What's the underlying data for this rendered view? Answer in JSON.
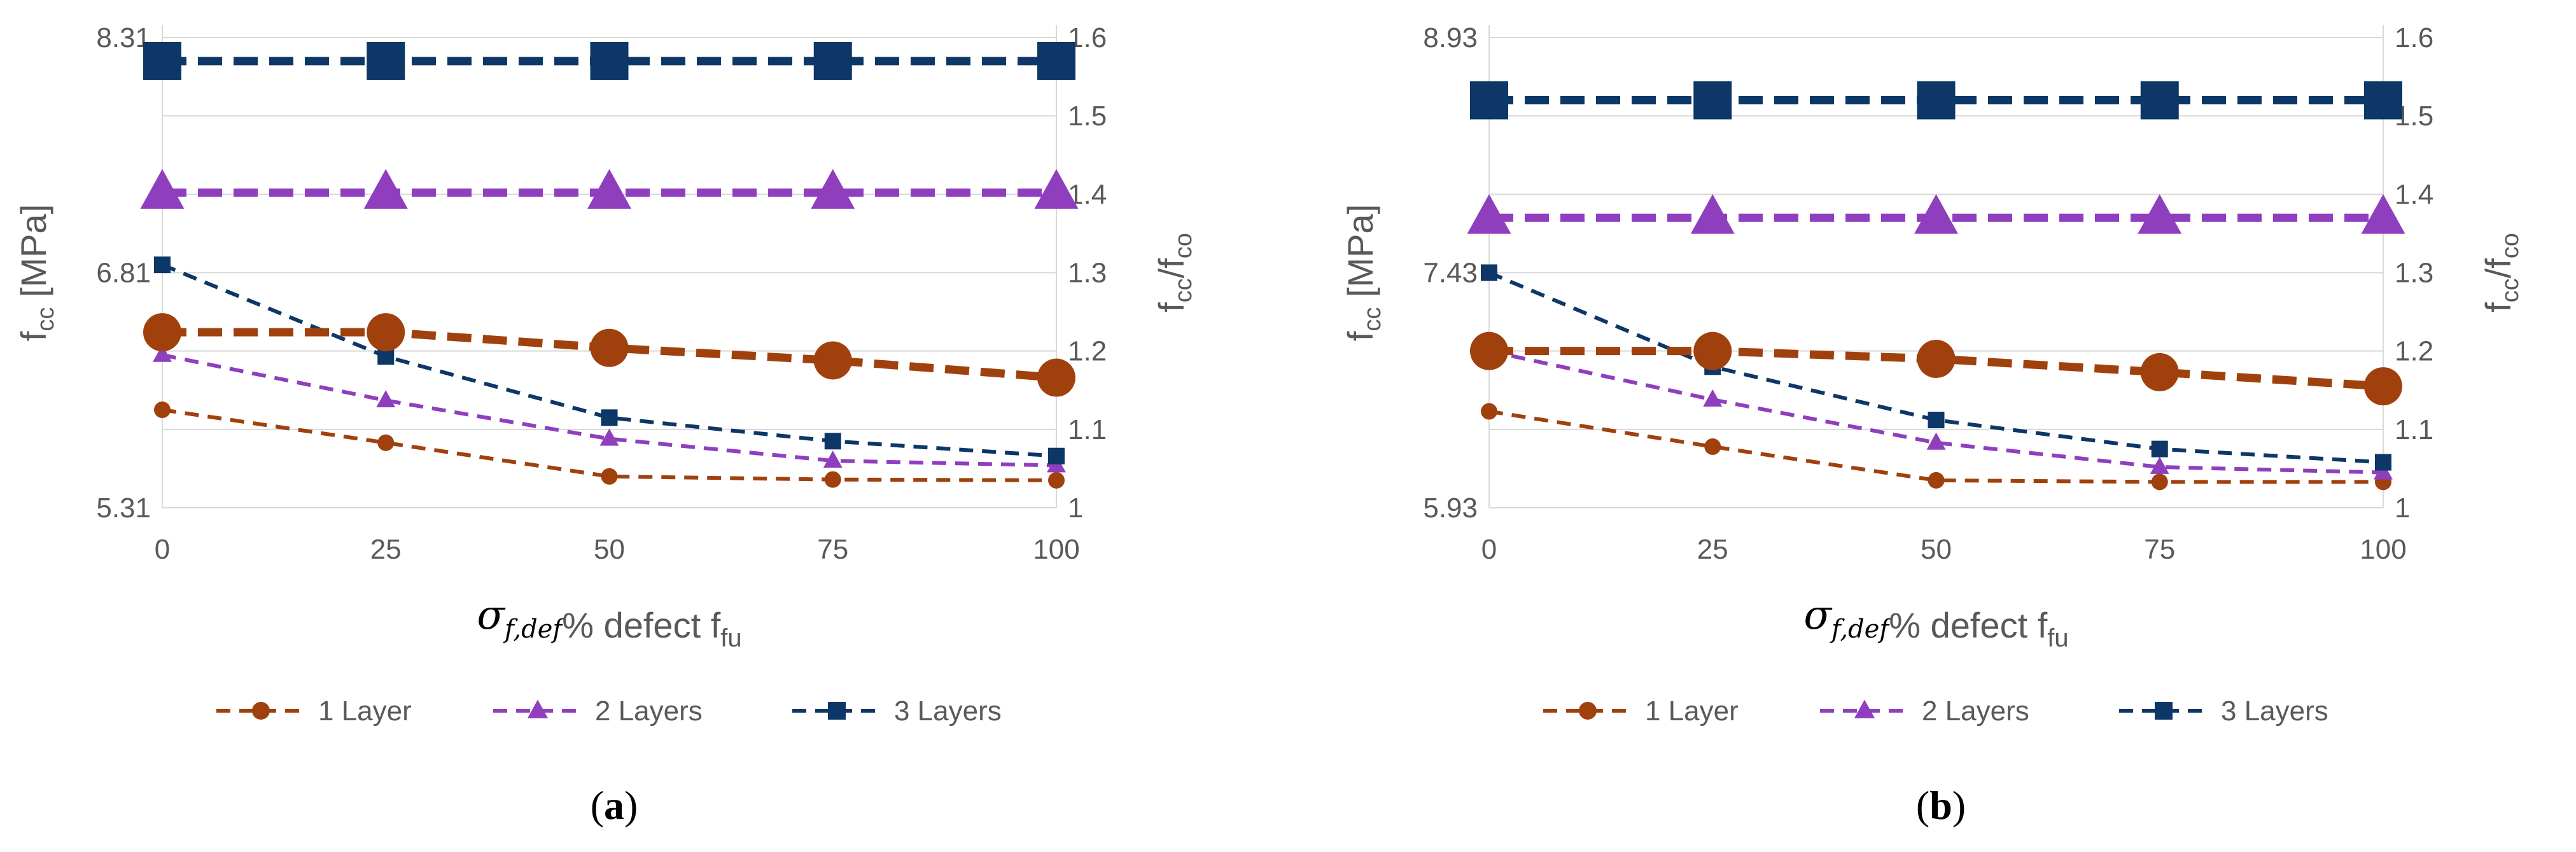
{
  "colors": {
    "layer1": "#a0410d",
    "layer2": "#8f3fbd",
    "layer3": "#0c3766",
    "gridline": "#d9d9d9",
    "text": "#595959"
  },
  "legend": [
    "1 Layer",
    "2 Layers",
    "3 Layers"
  ],
  "chart_data": [
    {
      "type": "line",
      "panel_label": "a",
      "x": [
        0,
        25,
        50,
        75,
        100
      ],
      "xlabel_symbol": "σ",
      "xlabel_subscript": "f,def",
      "xlabel_text": "% defect f",
      "xlabel_text_subscript": "fu",
      "ylabel_left_main": "f",
      "ylabel_left_sub": "cc",
      "ylabel_left_unit": " [MPa]",
      "ylabel_right": [
        "f",
        "cc",
        "/f",
        "co"
      ],
      "ylim_left": [
        5.31,
        8.31
      ],
      "yticks_left": [
        "5.31",
        "6.81",
        "8.31"
      ],
      "ylim_right": [
        1.0,
        1.6
      ],
      "yticks_right": [
        "1",
        "1.1",
        "1.2",
        "1.3",
        "1.4",
        "1.5",
        "1.6"
      ],
      "xticks": [
        "0",
        "25",
        "50",
        "75",
        "100"
      ],
      "series": [
        {
          "name": "1 Layer",
          "style": "thin",
          "marker": "circle",
          "values": [
            1.125,
            1.083,
            1.04,
            1.036,
            1.035
          ]
        },
        {
          "name": "2 Layers",
          "style": "thin",
          "marker": "triangle",
          "values": [
            1.195,
            1.137,
            1.088,
            1.06,
            1.054
          ]
        },
        {
          "name": "3 Layers",
          "style": "thin",
          "marker": "square",
          "values": [
            1.31,
            1.193,
            1.115,
            1.085,
            1.066
          ]
        },
        {
          "name": "1 Layer",
          "style": "thick",
          "marker": "circle",
          "values": [
            1.224,
            1.224,
            1.204,
            1.188,
            1.166
          ]
        },
        {
          "name": "2 Layers",
          "style": "thick",
          "marker": "triangle",
          "values": [
            1.402,
            1.402,
            1.402,
            1.402,
            1.402
          ]
        },
        {
          "name": "3 Layers",
          "style": "thick",
          "marker": "square",
          "values": [
            1.57,
            1.57,
            1.57,
            1.57,
            1.57
          ]
        }
      ]
    },
    {
      "type": "line",
      "panel_label": "b",
      "x": [
        0,
        25,
        50,
        75,
        100
      ],
      "xlabel_symbol": "σ",
      "xlabel_subscript": "f,def",
      "xlabel_text": "% defect f",
      "xlabel_text_subscript": "fu",
      "ylabel_left_main": "f",
      "ylabel_left_sub": "cc",
      "ylabel_left_unit": " [MPa]",
      "ylabel_right": [
        "f",
        "cc",
        "/f",
        "co"
      ],
      "ylim_left": [
        5.93,
        8.93
      ],
      "yticks_left": [
        "5.93",
        "7.43",
        "8.93"
      ],
      "ylim_right": [
        1.0,
        1.6
      ],
      "yticks_right": [
        "1",
        "1.1",
        "1.2",
        "1.3",
        "1.4",
        "1.5",
        "1.6"
      ],
      "xticks": [
        "0",
        "25",
        "50",
        "75",
        "100"
      ],
      "series": [
        {
          "name": "1 Layer",
          "style": "thin",
          "marker": "circle",
          "values": [
            1.123,
            1.078,
            1.035,
            1.033,
            1.033
          ]
        },
        {
          "name": "2 Layers",
          "style": "thin",
          "marker": "triangle",
          "values": [
            1.2,
            1.138,
            1.083,
            1.052,
            1.045
          ]
        },
        {
          "name": "3 Layers",
          "style": "thin",
          "marker": "square",
          "values": [
            1.3,
            1.18,
            1.112,
            1.075,
            1.058
          ]
        },
        {
          "name": "1 Layer",
          "style": "thick",
          "marker": "circle",
          "values": [
            1.2,
            1.2,
            1.19,
            1.173,
            1.155
          ]
        },
        {
          "name": "2 Layers",
          "style": "thick",
          "marker": "triangle",
          "values": [
            1.37,
            1.37,
            1.37,
            1.37,
            1.37
          ]
        },
        {
          "name": "3 Layers",
          "style": "thick",
          "marker": "square",
          "values": [
            1.52,
            1.52,
            1.52,
            1.52,
            1.52
          ]
        }
      ]
    }
  ]
}
